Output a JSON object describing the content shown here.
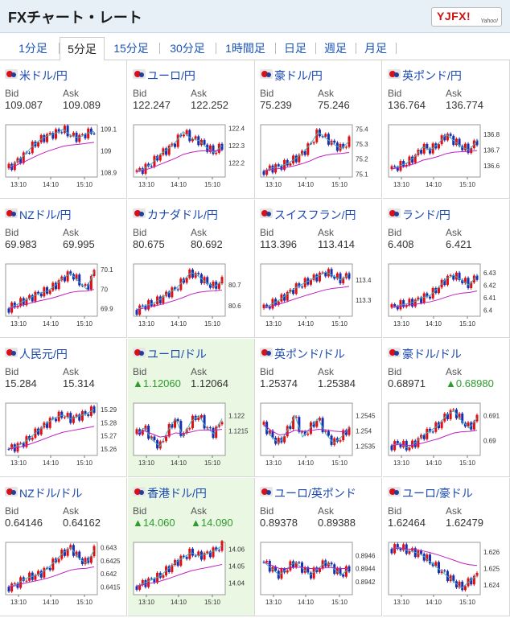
{
  "header": {
    "title": "FXチャート・レート",
    "logo_text": "YJFX!",
    "logo_sub": "Yahoo!"
  },
  "tabs": [
    {
      "label": "1分足",
      "active": false
    },
    {
      "label": "5分足",
      "active": true
    },
    {
      "label": "15分足",
      "active": false
    },
    {
      "label": "30分足",
      "active": false
    },
    {
      "label": "1時間足",
      "active": false
    },
    {
      "label": "日足",
      "active": false
    },
    {
      "label": "週足",
      "active": false
    },
    {
      "label": "月足",
      "active": false
    }
  ],
  "labels": {
    "bid": "Bid",
    "ask": "Ask"
  },
  "colors": {
    "link": "#1a48b0",
    "up_candle": "#e01010",
    "down_candle": "#1a2fb0",
    "ma1": "#40b0c0",
    "ma2": "#c020c0",
    "up_text": "#2e9b2e",
    "highlight": "#e9f7e3"
  },
  "pairs": [
    {
      "name": "米ドル/円",
      "flag": "us-flag-icon",
      "bid": "109.087",
      "ask": "109.089",
      "bid_up": false,
      "ask_up": false,
      "highlight": false,
      "chart_data": {
        "type": "line",
        "x_ticks": [
          "13:10",
          "14:10",
          "15:10"
        ],
        "y_ticks": [
          "109.1",
          "109",
          "108.9"
        ],
        "ylim": [
          108.88,
          109.12
        ],
        "trend": [
          108.92,
          108.95,
          108.98,
          109.02,
          109.05,
          109.07,
          109.08,
          109.1,
          109.07,
          109.06,
          109.08,
          109.09
        ]
      }
    },
    {
      "name": "ユーロ/円",
      "flag": "eu-flag-icon",
      "bid": "122.247",
      "ask": "122.252",
      "bid_up": false,
      "ask_up": false,
      "highlight": false,
      "chart_data": {
        "type": "line",
        "x_ticks": [
          "13:10",
          "14:10",
          "15:10"
        ],
        "y_ticks": [
          "122.4",
          "122.3",
          "122.2"
        ],
        "ylim": [
          122.12,
          122.42
        ],
        "trend": [
          122.15,
          122.17,
          122.2,
          122.25,
          122.28,
          122.32,
          122.38,
          122.34,
          122.33,
          122.29,
          122.26,
          122.3
        ]
      }
    },
    {
      "name": "豪ドル/円",
      "flag": "au-flag-icon",
      "bid": "75.239",
      "ask": "75.246",
      "bid_up": false,
      "ask_up": false,
      "highlight": false,
      "chart_data": {
        "type": "line",
        "x_ticks": [
          "13:10",
          "14:10",
          "15:10"
        ],
        "y_ticks": [
          "75.4",
          "75.3",
          "75.2",
          "75.1"
        ],
        "ylim": [
          75.08,
          75.43
        ],
        "trend": [
          75.12,
          75.14,
          75.15,
          75.17,
          75.2,
          75.24,
          75.3,
          75.38,
          75.34,
          75.3,
          75.27,
          75.32
        ]
      }
    },
    {
      "name": "英ポンド/円",
      "flag": "gb-flag-icon",
      "bid": "136.764",
      "ask": "136.774",
      "bid_up": false,
      "ask_up": false,
      "highlight": false,
      "chart_data": {
        "type": "line",
        "x_ticks": [
          "13:10",
          "14:10",
          "15:10"
        ],
        "y_ticks": [
          "136.8",
          "136.7",
          "136.6"
        ],
        "ylim": [
          136.53,
          136.86
        ],
        "trend": [
          136.58,
          136.6,
          136.62,
          136.66,
          136.72,
          136.7,
          136.74,
          136.8,
          136.76,
          136.72,
          136.7,
          136.76
        ]
      }
    },
    {
      "name": "NZドル/円",
      "flag": "nz-flag-icon",
      "bid": "69.983",
      "ask": "69.995",
      "bid_up": false,
      "ask_up": false,
      "highlight": false,
      "chart_data": {
        "type": "line",
        "x_ticks": [
          "13:10",
          "14:10",
          "15:10"
        ],
        "y_ticks": [
          "70.1",
          "70",
          "69.9"
        ],
        "ylim": [
          69.86,
          70.13
        ],
        "trend": [
          69.9,
          69.92,
          69.94,
          69.96,
          69.98,
          69.99,
          70.02,
          70.06,
          70.08,
          70.04,
          70.0,
          70.09
        ]
      }
    },
    {
      "name": "カナダドル/円",
      "flag": "ca-flag-icon",
      "bid": "80.675",
      "ask": "80.692",
      "bid_up": false,
      "ask_up": false,
      "highlight": false,
      "chart_data": {
        "type": "line",
        "x_ticks": [
          "13:10",
          "14:10",
          "15:10"
        ],
        "y_ticks": [
          "80.7",
          "80.6"
        ],
        "ylim": [
          80.55,
          80.8
        ],
        "trend": [
          80.58,
          80.6,
          80.61,
          80.63,
          80.66,
          80.68,
          80.72,
          80.76,
          80.74,
          80.71,
          80.69,
          80.72
        ]
      }
    },
    {
      "name": "スイスフラン/円",
      "flag": "ch-flag-icon",
      "bid": "113.396",
      "ask": "113.414",
      "bid_up": false,
      "ask_up": false,
      "highlight": false,
      "chart_data": {
        "type": "line",
        "x_ticks": [
          "13:10",
          "14:10",
          "15:10"
        ],
        "y_ticks": [
          "113.4",
          "113.3"
        ],
        "ylim": [
          113.22,
          113.48
        ],
        "trend": [
          113.26,
          113.28,
          113.3,
          113.33,
          113.36,
          113.38,
          113.4,
          113.42,
          113.44,
          113.42,
          113.4,
          113.43
        ]
      }
    },
    {
      "name": "ランド/円",
      "flag": "za-flag-icon",
      "bid": "6.408",
      "ask": "6.421",
      "bid_up": false,
      "ask_up": false,
      "highlight": false,
      "chart_data": {
        "type": "line",
        "x_ticks": [
          "13:10",
          "14:10",
          "15:10"
        ],
        "y_ticks": [
          "6.43",
          "6.42",
          "6.41",
          "6.4"
        ],
        "ylim": [
          6.395,
          6.437
        ],
        "trend": [
          6.402,
          6.404,
          6.405,
          6.407,
          6.41,
          6.412,
          6.418,
          6.425,
          6.428,
          6.424,
          6.42,
          6.428
        ]
      }
    },
    {
      "name": "人民元/円",
      "flag": "cn-flag-icon",
      "bid": "15.284",
      "ask": "15.314",
      "bid_up": false,
      "ask_up": false,
      "highlight": false,
      "chart_data": {
        "type": "line",
        "x_ticks": [
          "13:10",
          "14:10",
          "15:10"
        ],
        "y_ticks": [
          "15.29",
          "15.28",
          "15.27",
          "15.26"
        ],
        "ylim": [
          15.255,
          15.295
        ],
        "trend": [
          15.26,
          15.262,
          15.265,
          15.27,
          15.275,
          15.28,
          15.284,
          15.286,
          15.283,
          15.285,
          15.287,
          15.29
        ]
      }
    },
    {
      "name": "ユーロ/ドル",
      "flag": "eu-us-flag-icon",
      "bid": "▲1.12060",
      "ask": "1.12064",
      "bid_up": true,
      "ask_up": false,
      "highlight": true,
      "chart_data": {
        "type": "line",
        "x_ticks": [
          "13:10",
          "14:10",
          "15:10"
        ],
        "y_ticks": [
          "1.122",
          "1.1215"
        ],
        "ylim": [
          1.1207,
          1.1224
        ],
        "trend": [
          1.1214,
          1.1216,
          1.1212,
          1.121,
          1.1215,
          1.1219,
          1.1213,
          1.1218,
          1.122,
          1.1216,
          1.1214,
          1.1219
        ]
      }
    },
    {
      "name": "英ポンド/ドル",
      "flag": "gb-us-flag-icon",
      "bid": "1.25374",
      "ask": "1.25384",
      "bid_up": false,
      "ask_up": false,
      "highlight": false,
      "chart_data": {
        "type": "line",
        "x_ticks": [
          "13:10",
          "14:10",
          "15:10"
        ],
        "y_ticks": [
          "1.2545",
          "1.254",
          "1.2535"
        ],
        "ylim": [
          1.2532,
          1.2549
        ],
        "trend": [
          1.2542,
          1.2538,
          1.2536,
          1.254,
          1.2545,
          1.2538,
          1.2541,
          1.2544,
          1.2539,
          1.2536,
          1.2538,
          1.2541
        ]
      }
    },
    {
      "name": "豪ドル/ドル",
      "flag": "au-us-flag-icon",
      "bid": "0.68971",
      "ask": "▲0.68980",
      "bid_up": false,
      "ask_up": true,
      "highlight": false,
      "chart_data": {
        "type": "line",
        "x_ticks": [
          "13:10",
          "14:10",
          "15:10"
        ],
        "y_ticks": [
          "0.691",
          "0.69"
        ],
        "ylim": [
          0.6894,
          0.6915
        ],
        "trend": [
          0.6898,
          0.6899,
          0.6897,
          0.6899,
          0.6902,
          0.6904,
          0.6906,
          0.691,
          0.6912,
          0.6908,
          0.6905,
          0.6909
        ]
      }
    },
    {
      "name": "NZドル/ドル",
      "flag": "nz-us-flag-icon",
      "bid": "0.64146",
      "ask": "0.64162",
      "bid_up": false,
      "ask_up": false,
      "highlight": false,
      "chart_data": {
        "type": "line",
        "x_ticks": [
          "13:10",
          "14:10",
          "15:10"
        ],
        "y_ticks": [
          "0.643",
          "0.6425",
          "0.642",
          "0.6415"
        ],
        "ylim": [
          0.6412,
          0.6432
        ],
        "trend": [
          0.6415,
          0.6416,
          0.6418,
          0.6419,
          0.642,
          0.6422,
          0.6425,
          0.6428,
          0.643,
          0.6426,
          0.6424,
          0.6429
        ]
      }
    },
    {
      "name": "香港ドル/円",
      "flag": "hk-flag-icon",
      "bid": "▲14.060",
      "ask": "▲14.090",
      "bid_up": true,
      "ask_up": true,
      "highlight": true,
      "chart_data": {
        "type": "line",
        "x_ticks": [
          "13:10",
          "14:10",
          "15:10"
        ],
        "y_ticks": [
          "14.06",
          "14.05",
          "14.04"
        ],
        "ylim": [
          14.033,
          14.064
        ],
        "trend": [
          14.038,
          14.04,
          14.042,
          14.044,
          14.048,
          14.052,
          14.055,
          14.058,
          14.056,
          14.057,
          14.059,
          14.062
        ]
      }
    },
    {
      "name": "ユーロ/英ポンド",
      "flag": "eu-gb-flag-icon",
      "bid": "0.89378",
      "ask": "0.89388",
      "bid_up": false,
      "ask_up": false,
      "highlight": false,
      "chart_data": {
        "type": "line",
        "x_ticks": [
          "13:10",
          "14:10",
          "15:10"
        ],
        "y_ticks": [
          "0.8946",
          "0.8944",
          "0.8942"
        ],
        "ylim": [
          0.894,
          0.8948
        ],
        "trend": [
          0.8945,
          0.8944,
          0.8943,
          0.8944,
          0.8945,
          0.8944,
          0.8943,
          0.8944,
          0.8945,
          0.8944,
          0.8943,
          0.8944
        ]
      }
    },
    {
      "name": "ユーロ/豪ドル",
      "flag": "eu-au-flag-icon",
      "bid": "1.62464",
      "ask": "1.62479",
      "bid_up": false,
      "ask_up": false,
      "highlight": false,
      "chart_data": {
        "type": "line",
        "x_ticks": [
          "13:10",
          "14:10",
          "15:10"
        ],
        "y_ticks": [
          "1.626",
          "1.625",
          "1.624"
        ],
        "ylim": [
          1.6234,
          1.6266
        ],
        "trend": [
          1.6262,
          1.6263,
          1.6261,
          1.626,
          1.6258,
          1.6254,
          1.625,
          1.6246,
          1.6242,
          1.6238,
          1.6242,
          1.6246
        ]
      }
    }
  ]
}
